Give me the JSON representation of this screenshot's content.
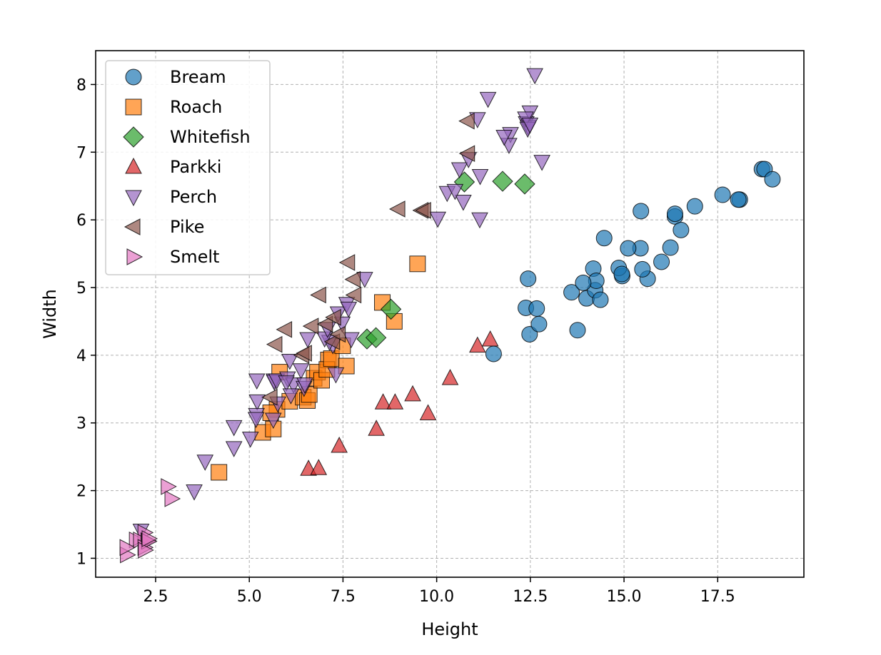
{
  "chart_data": {
    "type": "scatter",
    "title": "",
    "xlabel": "Height",
    "ylabel": "Width",
    "xlim": [
      0.9,
      19.8
    ],
    "ylim": [
      0.72,
      8.5
    ],
    "xticks": [
      "2.5",
      "5.0",
      "7.5",
      "10.0",
      "12.5",
      "15.0",
      "17.5"
    ],
    "yticks": [
      "1",
      "2",
      "3",
      "4",
      "5",
      "6",
      "7",
      "8"
    ],
    "grid": true,
    "legend_position": "top-left",
    "series": [
      {
        "name": "Bream",
        "marker": "circle",
        "color": "#1f77b4",
        "points": [
          [
            11.52,
            4.02
          ],
          [
            12.48,
            4.31
          ],
          [
            12.38,
            4.7
          ],
          [
            12.73,
            4.46
          ],
          [
            12.44,
            5.13
          ],
          [
            13.6,
            4.93
          ],
          [
            14.18,
            5.28
          ],
          [
            12.67,
            4.69
          ],
          [
            14.0,
            4.84
          ],
          [
            14.23,
            4.96
          ],
          [
            14.26,
            5.1
          ],
          [
            14.37,
            4.82
          ],
          [
            13.76,
            4.37
          ],
          [
            13.91,
            5.07
          ],
          [
            14.95,
            5.17
          ],
          [
            15.44,
            5.58
          ],
          [
            14.86,
            5.29
          ],
          [
            14.94,
            5.2
          ],
          [
            15.63,
            5.13
          ],
          [
            14.47,
            5.73
          ],
          [
            15.11,
            5.58
          ],
          [
            15.49,
            5.27
          ],
          [
            16.24,
            5.59
          ],
          [
            16.0,
            5.38
          ],
          [
            16.36,
            6.05
          ],
          [
            16.36,
            6.09
          ],
          [
            16.52,
            5.85
          ],
          [
            15.45,
            6.13
          ],
          [
            16.89,
            6.2
          ],
          [
            17.63,
            6.37
          ],
          [
            18.09,
            6.3
          ],
          [
            18.05,
            6.3
          ],
          [
            18.68,
            6.75
          ],
          [
            18.75,
            6.75
          ],
          [
            18.96,
            6.6
          ]
        ]
      },
      {
        "name": "Roach",
        "marker": "square",
        "color": "#ff7f0e",
        "points": [
          [
            4.19,
            2.27
          ],
          [
            5.36,
            2.86
          ],
          [
            5.64,
            2.91
          ],
          [
            5.74,
            3.2
          ],
          [
            5.57,
            3.15
          ],
          [
            5.81,
            3.75
          ],
          [
            6.08,
            3.32
          ],
          [
            6.44,
            3.38
          ],
          [
            6.55,
            3.33
          ],
          [
            6.6,
            3.42
          ],
          [
            6.73,
            3.66
          ],
          [
            6.82,
            3.75
          ],
          [
            7.11,
            3.93
          ],
          [
            6.93,
            3.63
          ],
          [
            7.07,
            3.79
          ],
          [
            7.19,
            3.95
          ],
          [
            7.59,
            3.84
          ],
          [
            7.49,
            4.14
          ],
          [
            8.55,
            4.78
          ],
          [
            8.87,
            4.5
          ],
          [
            9.49,
            5.35
          ]
        ]
      },
      {
        "name": "Whitefish",
        "marker": "diamond",
        "color": "#2ca02c",
        "points": [
          [
            8.14,
            4.24
          ],
          [
            8.38,
            4.26
          ],
          [
            8.78,
            4.68
          ],
          [
            10.74,
            6.56
          ],
          [
            11.76,
            6.57
          ],
          [
            12.35,
            6.53
          ]
        ]
      },
      {
        "name": "Parkki",
        "marker": "triangle-up",
        "color": "#d62728",
        "points": [
          [
            6.58,
            2.32
          ],
          [
            6.85,
            2.33
          ],
          [
            7.4,
            2.66
          ],
          [
            8.39,
            2.91
          ],
          [
            8.57,
            3.3
          ],
          [
            8.89,
            3.3
          ],
          [
            9.36,
            3.42
          ],
          [
            9.77,
            3.14
          ],
          [
            10.36,
            3.66
          ],
          [
            11.09,
            4.14
          ],
          [
            11.43,
            4.23
          ]
        ]
      },
      {
        "name": "Perch",
        "marker": "triangle-down",
        "color": "#9467bd",
        "points": [
          [
            2.11,
            1.41
          ],
          [
            3.53,
            1.99
          ],
          [
            3.82,
            2.43
          ],
          [
            4.59,
            2.63
          ],
          [
            4.59,
            2.94
          ],
          [
            5.21,
            3.32
          ],
          [
            5.19,
            3.12
          ],
          [
            5.64,
            3.05
          ],
          [
            5.03,
            2.77
          ],
          [
            5.18,
            3.06
          ],
          [
            5.2,
            3.63
          ],
          [
            5.66,
            3.63
          ],
          [
            5.67,
            3.61
          ],
          [
            5.73,
            3.63
          ],
          [
            6.02,
            3.66
          ],
          [
            6.18,
            3.57
          ],
          [
            5.99,
            3.6
          ],
          [
            6.46,
            3.52
          ],
          [
            6.11,
            3.41
          ],
          [
            6.38,
            3.78
          ],
          [
            6.48,
            3.57
          ],
          [
            6.08,
            3.92
          ],
          [
            7.31,
            3.72
          ],
          [
            6.56,
            4.24
          ],
          [
            7.23,
            4.15
          ],
          [
            7.48,
            4.47
          ],
          [
            7.14,
            4.2
          ],
          [
            5.76,
            3.29
          ],
          [
            7.72,
            4.24
          ],
          [
            7.01,
            4.25
          ],
          [
            7.09,
            4.39
          ],
          [
            7.37,
            4.62
          ],
          [
            7.6,
            4.76
          ],
          [
            7.65,
            4.69
          ],
          [
            8.08,
            5.13
          ],
          [
            10.03,
            6.02
          ],
          [
            10.28,
            6.4
          ],
          [
            11.15,
            6.01
          ],
          [
            10.71,
            6.27
          ],
          [
            11.16,
            6.65
          ],
          [
            10.61,
            6.75
          ],
          [
            10.85,
            6.9
          ],
          [
            10.49,
            6.43
          ],
          [
            11.09,
            7.49
          ],
          [
            11.97,
            7.27
          ],
          [
            12.39,
            7.43
          ],
          [
            11.93,
            7.11
          ],
          [
            11.37,
            7.79
          ],
          [
            12.62,
            8.14
          ],
          [
            11.8,
            7.23
          ],
          [
            12.44,
            7.38
          ],
          [
            12.49,
            7.59
          ],
          [
            12.81,
            6.86
          ],
          [
            12.37,
            7.5
          ],
          [
            12.43,
            7.35
          ],
          [
            12.49,
            7.41
          ]
        ]
      },
      {
        "name": "Pike",
        "marker": "triangle-left",
        "color": "#8c564b",
        "points": [
          [
            5.57,
            3.38
          ],
          [
            5.7,
            4.16
          ],
          [
            5.96,
            4.38
          ],
          [
            6.42,
            4.0
          ],
          [
            6.67,
            4.43
          ],
          [
            7.05,
            4.46
          ],
          [
            7.24,
            4.2
          ],
          [
            6.49,
            4.03
          ],
          [
            7.39,
            4.31
          ],
          [
            6.87,
            4.89
          ],
          [
            7.27,
            4.56
          ],
          [
            7.81,
            4.89
          ],
          [
            7.79,
            5.12
          ],
          [
            7.64,
            5.37
          ],
          [
            9.6,
            6.14
          ],
          [
            9.67,
            6.14
          ],
          [
            8.98,
            6.16
          ],
          [
            10.84,
            6.98
          ],
          [
            10.83,
            7.46
          ]
        ]
      },
      {
        "name": "Smelt",
        "marker": "triangle-right",
        "color": "#e377c2",
        "points": [
          [
            1.73,
            1.05
          ],
          [
            1.97,
            1.27
          ],
          [
            1.72,
            1.16
          ],
          [
            2.2,
            1.38
          ],
          [
            2.08,
            1.27
          ],
          [
            2.28,
            1.26
          ],
          [
            2.2,
            1.16
          ],
          [
            2.3,
            1.25
          ],
          [
            2.21,
            1.12
          ],
          [
            2.31,
            1.29
          ],
          [
            2.92,
            1.88
          ],
          [
            2.82,
            2.06
          ]
        ]
      }
    ]
  }
}
